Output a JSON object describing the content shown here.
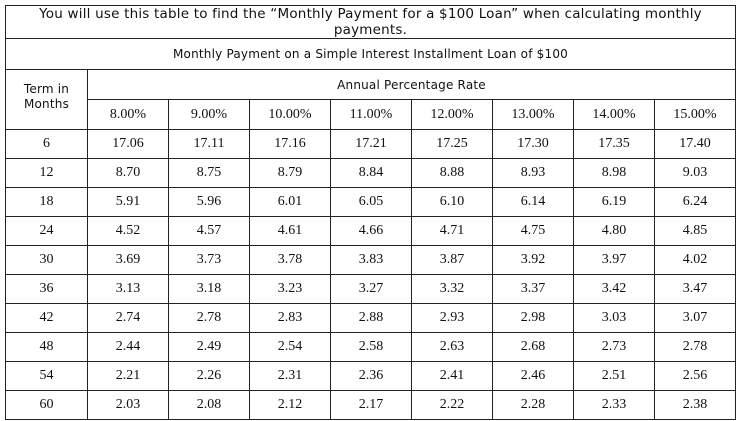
{
  "title": "You will use this table to find the “Monthly Payment for a $100 Loan” when calculating monthly payments.",
  "table": {
    "caption": "Monthly Payment on a Simple Interest Installment Loan of $100",
    "term_header": "Term in Months",
    "rate_header": "Annual Percentage Rate",
    "rates": [
      "8.00%",
      "9.00%",
      "10.00%",
      "11.00%",
      "12.00%",
      "13.00%",
      "14.00%",
      "15.00%"
    ],
    "rows": [
      [
        "6",
        "17.06",
        "17.11",
        "17.16",
        "17.21",
        "17.25",
        "17.30",
        "17.35",
        "17.40"
      ],
      [
        "12",
        "8.70",
        "8.75",
        "8.79",
        "8.84",
        "8.88",
        "8.93",
        "8.98",
        "9.03"
      ],
      [
        "18",
        "5.91",
        "5.96",
        "6.01",
        "6.05",
        "6.10",
        "6.14",
        "6.19",
        "6.24"
      ],
      [
        "24",
        "4.52",
        "4.57",
        "4.61",
        "4.66",
        "4.71",
        "4.75",
        "4.80",
        "4.85"
      ],
      [
        "30",
        "3.69",
        "3.73",
        "3.78",
        "3.83",
        "3.87",
        "3.92",
        "3.97",
        "4.02"
      ],
      [
        "36",
        "3.13",
        "3.18",
        "3.23",
        "3.27",
        "3.32",
        "3.37",
        "3.42",
        "3.47"
      ],
      [
        "42",
        "2.74",
        "2.78",
        "2.83",
        "2.88",
        "2.93",
        "2.98",
        "3.03",
        "3.07"
      ],
      [
        "48",
        "2.44",
        "2.49",
        "2.54",
        "2.58",
        "2.63",
        "2.68",
        "2.73",
        "2.78"
      ],
      [
        "54",
        "2.21",
        "2.26",
        "2.31",
        "2.36",
        "2.41",
        "2.46",
        "2.51",
        "2.56"
      ],
      [
        "60",
        "2.03",
        "2.08",
        "2.12",
        "2.17",
        "2.22",
        "2.28",
        "2.33",
        "2.38"
      ]
    ]
  }
}
